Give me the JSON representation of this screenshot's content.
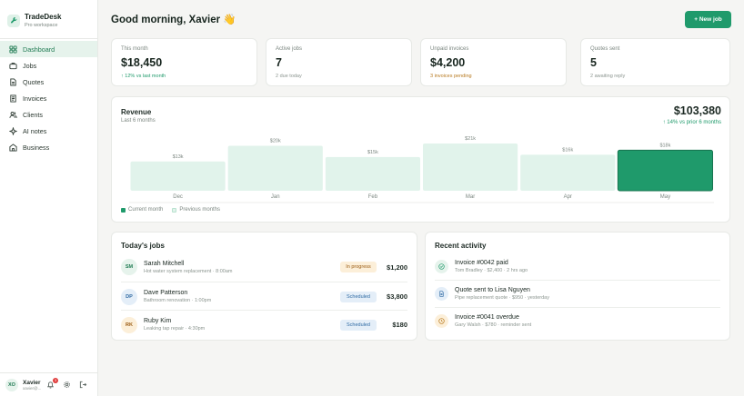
{
  "brand": {
    "name": "TradeDesk",
    "workspace": "Pro workspace"
  },
  "sidebar": {
    "items": [
      {
        "label": "Dashboard",
        "icon": "grid-icon",
        "active": true
      },
      {
        "label": "Jobs",
        "icon": "briefcase-icon"
      },
      {
        "label": "Quotes",
        "icon": "document-icon"
      },
      {
        "label": "Invoices",
        "icon": "invoice-icon"
      },
      {
        "label": "Clients",
        "icon": "users-icon"
      },
      {
        "label": "AI notes",
        "icon": "sparkle-icon"
      },
      {
        "label": "Business",
        "icon": "building-icon"
      }
    ],
    "user": {
      "initials": "XO",
      "name": "Xavier",
      "email": "xavier@..."
    },
    "notification_count": "3"
  },
  "header": {
    "greeting": "Good morning, Xavier 👋",
    "new_job_label": "+ New job"
  },
  "stats": [
    {
      "label": "This month",
      "value": "$18,450",
      "sub": "↑ 12% vs last month",
      "sub_color": "#1f9a6b"
    },
    {
      "label": "Active jobs",
      "value": "7",
      "sub": "2 due today",
      "sub_color": "#8b958f"
    },
    {
      "label": "Unpaid invoices",
      "value": "$4,200",
      "sub": "3 invoices pending",
      "sub_color": "#b7791f"
    },
    {
      "label": "Quotes sent",
      "value": "5",
      "sub": "2 awaiting reply",
      "sub_color": "#8b958f"
    }
  ],
  "revenue": {
    "title": "Revenue",
    "subtitle": "Last 6 months",
    "total": "$103,380",
    "change": "↑ 14% vs prior 6 months",
    "legend_current": "Current month",
    "legend_previous": "Previous months"
  },
  "chart_data": {
    "type": "bar",
    "categories": [
      "Dec",
      "Jan",
      "Feb",
      "Mar",
      "Apr",
      "May"
    ],
    "values": [
      13,
      20,
      15,
      21,
      16,
      18
    ],
    "value_labels": [
      "$13k",
      "$20k",
      "$15k",
      "$21k",
      "$16k",
      "$18k"
    ],
    "title": "Revenue",
    "highlight": "May",
    "colors": {
      "current": "#1f9a6b",
      "previous": "#e1f3eb"
    },
    "legend": [
      "Current month",
      "Previous months"
    ],
    "legend_position": "bottom-left"
  },
  "jobs": {
    "title": "Today's jobs",
    "rows": [
      {
        "initials": "SM",
        "name": "Sarah Mitchell",
        "desc": "Hot water system replacement · 8:00am",
        "status": "In progress",
        "amount": "$1,200",
        "av_bg": "#e6f3ec",
        "av_fg": "#1f7a52",
        "pill_bg": "#fcefd9",
        "pill_fg": "#9a5b12"
      },
      {
        "initials": "DP",
        "name": "Dave Patterson",
        "desc": "Bathroom renovation · 1:00pm",
        "status": "Scheduled",
        "amount": "$3,800",
        "av_bg": "#e4eef8",
        "av_fg": "#2f6aa3",
        "pill_bg": "#e4eef8",
        "pill_fg": "#2f6aa3"
      },
      {
        "initials": "RK",
        "name": "Ruby Kim",
        "desc": "Leaking tap repair · 4:30pm",
        "status": "Scheduled",
        "amount": "$180",
        "av_bg": "#fcefd9",
        "av_fg": "#9a5b12",
        "pill_bg": "#e4eef8",
        "pill_fg": "#2f6aa3"
      }
    ]
  },
  "activity": {
    "title": "Recent activity",
    "rows": [
      {
        "icon": "check-icon",
        "title": "Invoice #0042 paid",
        "desc": "Tom Bradley · $2,400 · 2 hrs ago",
        "bg": "#e6f3ec",
        "fg": "#1f9a6b"
      },
      {
        "icon": "document-icon",
        "title": "Quote sent to Lisa Nguyen",
        "desc": "Pipe replacement quote · $950 · yesterday",
        "bg": "#e4eef8",
        "fg": "#2f6aa3"
      },
      {
        "icon": "clock-icon",
        "title": "Invoice #0041 overdue",
        "desc": "Gary Walsh · $780 · reminder sent",
        "bg": "#fcefd9",
        "fg": "#b7791f"
      }
    ]
  }
}
